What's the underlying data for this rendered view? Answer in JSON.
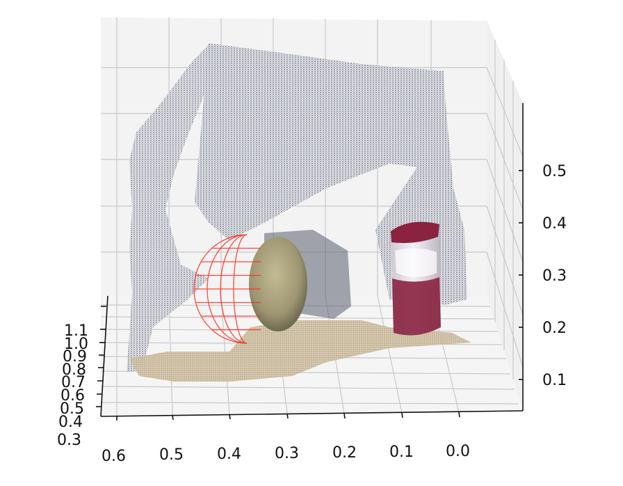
{
  "chart_data": {
    "type": "scatter",
    "projection": "3d",
    "title": "",
    "x_axis": {
      "ticks": [
        "0.6",
        "0.5",
        "0.4",
        "0.3",
        "0.2",
        "0.1",
        "0.0"
      ]
    },
    "y_axis": {
      "ticks": [
        "1.1",
        "1.0",
        "0.9",
        "0.8",
        "0.7",
        "0.6",
        "0.5",
        "0.4",
        "0.3"
      ]
    },
    "z_axis": {
      "ticks": [
        "0.5",
        "0.4",
        "0.3",
        "0.2",
        "0.1"
      ]
    },
    "grid": true,
    "series": [
      {
        "kind": "colored point cloud",
        "objects": [
          "back wall",
          "left wall",
          "table surface",
          "round stone",
          "can"
        ]
      },
      {
        "kind": "wireframe sphere",
        "color": "#ff2a1f"
      }
    ],
    "colors": {
      "pane": "#f2f2f2",
      "grid": "#c8c8c8",
      "wall_points": "#8a8e9c",
      "floor_points": "#cbbfa6",
      "stone": "#a79f7a",
      "can_body": "#e9e5ea",
      "can_band": "#8a2240",
      "sphere": "#ff2a1f"
    }
  }
}
